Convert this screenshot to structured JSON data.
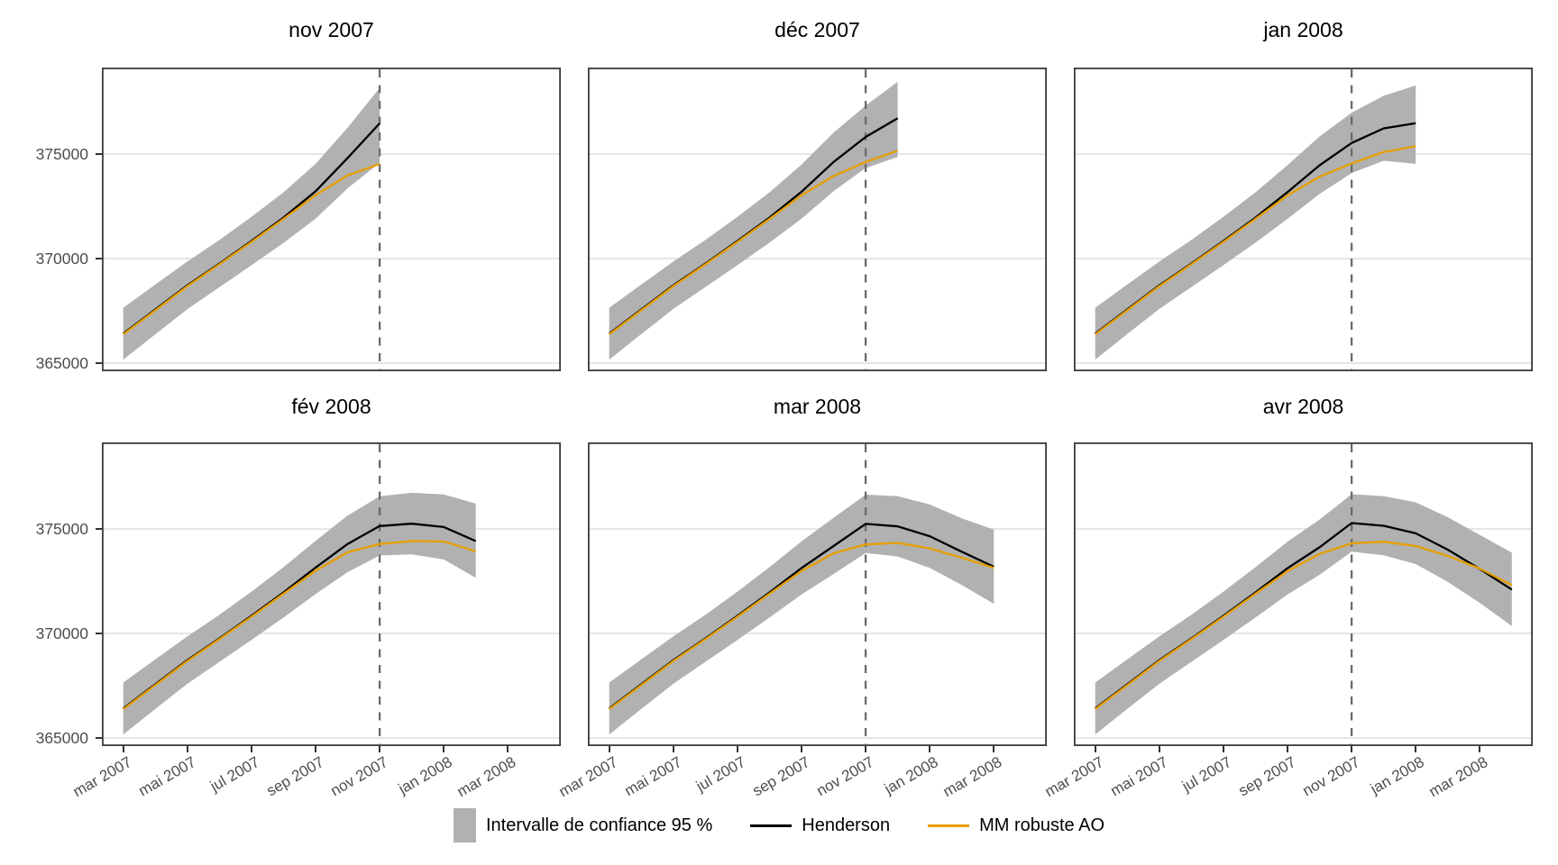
{
  "legend": {
    "ci_label": "Intervalle de confiance 95 %",
    "henderson_label": "Henderson",
    "mm_label": "MM robuste AO",
    "ci_color": "#b1b1b1",
    "henderson_color": "#000000",
    "mm_color": "#E69F00"
  },
  "y_axis": {
    "ticks": [
      375000,
      370000,
      365000
    ],
    "tick_labels": [
      "375000",
      "370000",
      "365000"
    ]
  },
  "x_axis": {
    "tick_labels": [
      "mar 2007",
      "mai 2007",
      "jul 2007",
      "sep 2007",
      "nov 2007",
      "jan 2008",
      "mar 2008"
    ],
    "tick_month_indices": [
      0,
      2,
      4,
      6,
      8,
      10,
      12
    ]
  },
  "style": {
    "grid_color": "#e6e6e6",
    "border_color": "#3a3a3a",
    "vline_color": "#6a6a6a",
    "band_color": "#b1b1b1"
  },
  "chart_data": [
    {
      "type": "line",
      "title": "nov 2007",
      "x": [
        "2007-03",
        "2007-04",
        "2007-05",
        "2007-06",
        "2007-07",
        "2007-08",
        "2007-09",
        "2007-10",
        "2007-11"
      ],
      "vline_x": "2007-11",
      "ylim": [
        364600,
        379300
      ],
      "series": [
        {
          "name": "Henderson",
          "color": "#000000",
          "values": [
            366410,
            367570,
            368720,
            369760,
            370840,
            371960,
            373220,
            374810,
            376470
          ]
        },
        {
          "name": "MM robuste AO",
          "color": "#E69F00",
          "values": [
            366380,
            367530,
            368680,
            369730,
            370800,
            371900,
            373040,
            373980,
            374530
          ]
        }
      ],
      "ci_upper": [
        367650,
        368760,
        369860,
        370890,
        372000,
        373170,
        374530,
        376260,
        378170
      ],
      "ci_lower": [
        365170,
        366380,
        367580,
        368630,
        369680,
        370750,
        371910,
        373360,
        374580
      ]
    },
    {
      "type": "line",
      "title": "déc 2007",
      "x": [
        "2007-03",
        "2007-04",
        "2007-05",
        "2007-06",
        "2007-07",
        "2007-08",
        "2007-09",
        "2007-10",
        "2007-11",
        "2007-12"
      ],
      "vline_x": "2007-11",
      "ylim": [
        364600,
        379300
      ],
      "series": [
        {
          "name": "Henderson",
          "color": "#000000",
          "values": [
            366410,
            367570,
            368720,
            369760,
            370840,
            371960,
            373200,
            374620,
            375820,
            376710
          ]
        },
        {
          "name": "MM robuste AO",
          "color": "#E69F00",
          "values": [
            366380,
            367530,
            368680,
            369730,
            370800,
            371900,
            373030,
            373950,
            374620,
            375160
          ]
        }
      ],
      "ci_upper": [
        367650,
        368760,
        369860,
        370890,
        372000,
        373170,
        374500,
        376020,
        377320,
        378460
      ],
      "ci_lower": [
        365170,
        366390,
        367590,
        368640,
        369690,
        370760,
        371910,
        373230,
        374330,
        374860
      ]
    },
    {
      "type": "line",
      "title": "jan 2008",
      "x": [
        "2007-03",
        "2007-04",
        "2007-05",
        "2007-06",
        "2007-07",
        "2007-08",
        "2007-09",
        "2007-10",
        "2007-11",
        "2007-12",
        "2008-01"
      ],
      "vline_x": "2007-11",
      "ylim": [
        364600,
        379300
      ],
      "series": [
        {
          "name": "Henderson",
          "color": "#000000",
          "values": [
            366410,
            367570,
            368720,
            369760,
            370840,
            371960,
            373180,
            374460,
            375530,
            376230,
            376480
          ]
        },
        {
          "name": "MM robuste AO",
          "color": "#E69F00",
          "values": [
            366380,
            367530,
            368680,
            369730,
            370800,
            371900,
            373020,
            373920,
            374550,
            375100,
            375370
          ]
        }
      ],
      "ci_upper": [
        367650,
        368760,
        369860,
        370890,
        372000,
        373170,
        374470,
        375840,
        376980,
        377790,
        378280
      ],
      "ci_lower": [
        365170,
        366390,
        367590,
        368640,
        369690,
        370760,
        371900,
        373090,
        374090,
        374680,
        374530
      ]
    },
    {
      "type": "line",
      "title": "fév 2008",
      "x": [
        "2007-03",
        "2007-04",
        "2007-05",
        "2007-06",
        "2007-07",
        "2007-08",
        "2007-09",
        "2007-10",
        "2007-11",
        "2007-12",
        "2008-01",
        "2008-02"
      ],
      "vline_x": "2007-11",
      "ylim": [
        364600,
        379300
      ],
      "series": [
        {
          "name": "Henderson",
          "color": "#000000",
          "values": [
            366410,
            367570,
            368720,
            369760,
            370840,
            371960,
            373150,
            374280,
            375140,
            375250,
            375090,
            374420
          ]
        },
        {
          "name": "MM robuste AO",
          "color": "#E69F00",
          "values": [
            366380,
            367530,
            368680,
            369730,
            370800,
            371900,
            373000,
            373880,
            374280,
            374420,
            374400,
            373930
          ]
        }
      ],
      "ci_upper": [
        367650,
        368760,
        369860,
        370890,
        372000,
        373170,
        374430,
        375640,
        376560,
        376730,
        376650,
        376210
      ],
      "ci_lower": [
        365170,
        366390,
        367590,
        368640,
        369690,
        370760,
        371880,
        372930,
        373730,
        373780,
        373540,
        372660
      ]
    },
    {
      "type": "line",
      "title": "mar 2008",
      "x": [
        "2007-03",
        "2007-04",
        "2007-05",
        "2007-06",
        "2007-07",
        "2007-08",
        "2007-09",
        "2007-10",
        "2007-11",
        "2007-12",
        "2008-01",
        "2008-02",
        "2008-03"
      ],
      "vline_x": "2007-11",
      "ylim": [
        364600,
        379300
      ],
      "series": [
        {
          "name": "Henderson",
          "color": "#000000",
          "values": [
            366410,
            367570,
            368720,
            369760,
            370840,
            371960,
            373130,
            374180,
            375240,
            375120,
            374650,
            373910,
            373190
          ]
        },
        {
          "name": "MM robuste AO",
          "color": "#E69F00",
          "values": [
            366380,
            367530,
            368680,
            369730,
            370800,
            371900,
            372990,
            373830,
            374260,
            374330,
            374070,
            373620,
            373140
          ]
        }
      ],
      "ci_upper": [
        367650,
        368760,
        369860,
        370890,
        372000,
        373170,
        374410,
        375530,
        376640,
        376570,
        376170,
        375510,
        374970
      ],
      "ci_lower": [
        365170,
        366390,
        367590,
        368640,
        369690,
        370760,
        371860,
        372840,
        373850,
        373680,
        373140,
        372320,
        371420
      ]
    },
    {
      "type": "line",
      "title": "avr 2008",
      "x": [
        "2007-03",
        "2007-04",
        "2007-05",
        "2007-06",
        "2007-07",
        "2007-08",
        "2007-09",
        "2007-10",
        "2007-11",
        "2007-12",
        "2008-01",
        "2008-02",
        "2008-03",
        "2008-04"
      ],
      "vline_x": "2007-11",
      "ylim": [
        364600,
        379300
      ],
      "series": [
        {
          "name": "Henderson",
          "color": "#000000",
          "values": [
            366410,
            367570,
            368720,
            369760,
            370840,
            371960,
            373120,
            374120,
            375280,
            375150,
            374790,
            374010,
            373080,
            372100
          ]
        },
        {
          "name": "MM robuste AO",
          "color": "#E69F00",
          "values": [
            366380,
            367530,
            368680,
            369730,
            370800,
            371900,
            372980,
            373800,
            374310,
            374390,
            374180,
            373710,
            373100,
            372310
          ]
        }
      ],
      "ci_upper": [
        367650,
        368760,
        369860,
        370890,
        372000,
        373170,
        374390,
        375450,
        376660,
        376570,
        376270,
        375560,
        374710,
        373860
      ],
      "ci_lower": [
        365170,
        366390,
        367590,
        368640,
        369690,
        370760,
        371860,
        372800,
        373910,
        373740,
        373320,
        372470,
        371460,
        370350
      ]
    }
  ]
}
